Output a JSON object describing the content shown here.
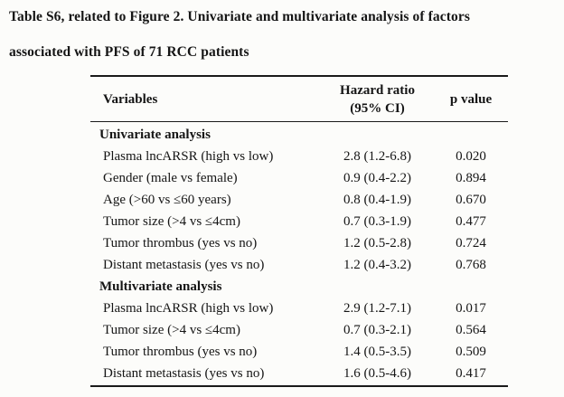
{
  "title": {
    "line1": "Table S6, related to Figure 2. Univariate and multivariate analysis of factors",
    "line2": "associated with PFS of 71 RCC patients"
  },
  "table": {
    "headers": {
      "variables": "Variables",
      "hazard_line1": "Hazard ratio",
      "hazard_line2": "(95% CI)",
      "p_value": "p value"
    },
    "rows": [
      {
        "type": "section",
        "variable": "Univariate analysis",
        "hazard_ratio": "",
        "p_value": ""
      },
      {
        "type": "data",
        "variable": "Plasma lncARSR (high vs low)",
        "hazard_ratio": "2.8 (1.2-6.8)",
        "p_value": "0.020"
      },
      {
        "type": "data",
        "variable": "Gender (male vs female)",
        "hazard_ratio": "0.9 (0.4-2.2)",
        "p_value": "0.894"
      },
      {
        "type": "data",
        "variable": "Age (>60 vs ≤60 years)",
        "hazard_ratio": "0.8 (0.4-1.9)",
        "p_value": "0.670"
      },
      {
        "type": "data",
        "variable": "Tumor size (>4 vs ≤4cm)",
        "hazard_ratio": "0.7 (0.3-1.9)",
        "p_value": "0.477"
      },
      {
        "type": "data",
        "variable": "Tumor thrombus (yes vs no)",
        "hazard_ratio": "1.2 (0.5-2.8)",
        "p_value": "0.724"
      },
      {
        "type": "data",
        "variable": "Distant metastasis (yes vs no)",
        "hazard_ratio": "1.2 (0.4-3.2)",
        "p_value": "0.768"
      },
      {
        "type": "section",
        "variable": "Multivariate analysis",
        "hazard_ratio": "",
        "p_value": ""
      },
      {
        "type": "data",
        "variable": "Plasma lncARSR (high vs low)",
        "hazard_ratio": "2.9 (1.2-7.1)",
        "p_value": "0.017"
      },
      {
        "type": "data",
        "variable": "Tumor size (>4 vs ≤4cm)",
        "hazard_ratio": "0.7 (0.3-2.1)",
        "p_value": "0.564"
      },
      {
        "type": "data",
        "variable": "Tumor thrombus (yes vs no)",
        "hazard_ratio": "1.4 (0.5-3.5)",
        "p_value": "0.509"
      },
      {
        "type": "data",
        "variable": "Distant metastasis (yes vs no)",
        "hazard_ratio": "1.6 (0.5-4.6)",
        "p_value": "0.417"
      }
    ]
  }
}
